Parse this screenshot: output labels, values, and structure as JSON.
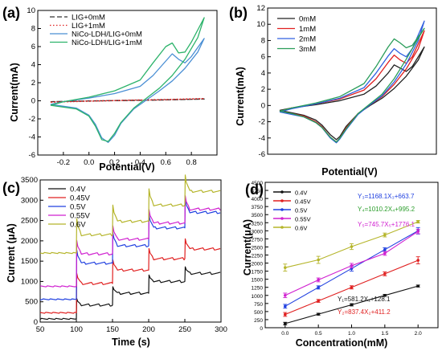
{
  "chart_data": [
    {
      "panel": "(a)",
      "type": "line",
      "xlabel": "Potential(V)",
      "ylabel": "Current(mA)",
      "xlim": [
        -0.4,
        1.0
      ],
      "ylim": [
        -6,
        10
      ],
      "xticks": [
        "-0.2",
        "0.0",
        "0.2",
        "0.4",
        "0.6",
        "0.8"
      ],
      "yticks": [
        "-6",
        "-4",
        "-2",
        "0",
        "2",
        "4",
        "6",
        "8",
        "10"
      ],
      "legend_position": "top-left",
      "series": [
        {
          "name": "LIG+0mM",
          "color": "#333333",
          "style": "dashed",
          "x": [
            -0.3,
            0.0,
            0.3,
            0.6,
            0.9,
            0.6,
            0.3,
            0.0,
            -0.3
          ],
          "y": [
            -0.1,
            -0.02,
            0.03,
            0.1,
            0.2,
            0.12,
            0.05,
            -0.02,
            -0.1
          ]
        },
        {
          "name": "LIG+1mM",
          "color": "#e02020",
          "style": "dotted",
          "x": [
            -0.3,
            0.0,
            0.3,
            0.6,
            0.9,
            0.6,
            0.3,
            0.0,
            -0.3
          ],
          "y": [
            -0.15,
            -0.05,
            0.05,
            0.12,
            0.25,
            0.15,
            0.07,
            -0.03,
            -0.15
          ]
        },
        {
          "name": "NiCo-LDH/LIG+0mM",
          "color": "#4a8fd4",
          "style": "solid",
          "x": [
            -0.3,
            -0.2,
            0.0,
            0.2,
            0.4,
            0.5,
            0.6,
            0.65,
            0.7,
            0.75,
            0.8,
            0.9,
            0.85,
            0.75,
            0.65,
            0.55,
            0.45,
            0.35,
            0.25,
            0.2,
            0.15,
            0.1,
            0.05,
            0.0,
            -0.1,
            -0.2,
            -0.3
          ],
          "y": [
            -0.4,
            -0.1,
            0.3,
            0.8,
            1.6,
            2.8,
            4.4,
            5.2,
            4.6,
            4.2,
            4.9,
            6.9,
            5.4,
            3.6,
            2.2,
            1.1,
            0.1,
            -0.9,
            -2.5,
            -3.8,
            -4.6,
            -4.1,
            -2.6,
            -1.6,
            -0.8,
            -0.6,
            -0.4
          ]
        },
        {
          "name": "NiCo-LDH/LIG+1mM",
          "color": "#2db36b",
          "style": "solid",
          "x": [
            -0.3,
            -0.2,
            0.0,
            0.2,
            0.4,
            0.5,
            0.6,
            0.65,
            0.7,
            0.75,
            0.8,
            0.9,
            0.85,
            0.75,
            0.65,
            0.55,
            0.45,
            0.35,
            0.25,
            0.2,
            0.15,
            0.1,
            0.05,
            0.0,
            -0.1,
            -0.2,
            -0.3
          ],
          "y": [
            -0.5,
            -0.1,
            0.4,
            1.1,
            2.3,
            4.2,
            6.0,
            6.4,
            5.3,
            5.4,
            6.5,
            9.2,
            7.0,
            4.6,
            2.8,
            1.4,
            0.3,
            -0.8,
            -2.4,
            -3.6,
            -4.5,
            -4.3,
            -2.8,
            -1.7,
            -0.9,
            -0.7,
            -0.5
          ]
        }
      ]
    },
    {
      "panel": "(b)",
      "type": "line",
      "xlabel": "Potential(V)",
      "ylabel": "Current(mA)",
      "xlim": [
        -0.4,
        1.0
      ],
      "ylim": [
        -6,
        12
      ],
      "yticks": [
        "-6",
        "-4",
        "-2",
        "0",
        "2",
        "4",
        "6",
        "8",
        "10",
        "12"
      ],
      "legend_position": "top-left",
      "series": [
        {
          "name": "0mM",
          "color": "#222222",
          "style": "solid",
          "x": [
            -0.3,
            -0.2,
            0.0,
            0.2,
            0.4,
            0.5,
            0.6,
            0.65,
            0.7,
            0.75,
            0.8,
            0.9,
            0.85,
            0.75,
            0.65,
            0.55,
            0.45,
            0.35,
            0.25,
            0.2,
            0.17,
            0.12,
            0.05,
            0.0,
            -0.1,
            -0.2,
            -0.3
          ],
          "y": [
            -0.6,
            -0.3,
            0.1,
            0.6,
            1.4,
            2.4,
            4.0,
            5.0,
            4.6,
            4.2,
            4.8,
            7.2,
            5.6,
            3.6,
            2.1,
            0.9,
            0.0,
            -1.0,
            -2.6,
            -3.8,
            -4.2,
            -3.6,
            -2.4,
            -1.8,
            -1.2,
            -0.9,
            -0.6
          ]
        },
        {
          "name": "1mM",
          "color": "#e02020",
          "style": "solid",
          "x": [
            -0.3,
            -0.2,
            0.0,
            0.2,
            0.4,
            0.5,
            0.6,
            0.65,
            0.7,
            0.75,
            0.8,
            0.9,
            0.85,
            0.75,
            0.65,
            0.55,
            0.45,
            0.35,
            0.25,
            0.2,
            0.17,
            0.12,
            0.05,
            0.0,
            -0.1,
            -0.2,
            -0.3
          ],
          "y": [
            -0.7,
            -0.3,
            0.2,
            0.8,
            1.9,
            3.3,
            5.3,
            6.2,
            5.6,
            5.2,
            6.0,
            9.2,
            7.0,
            4.5,
            2.6,
            1.1,
            0.1,
            -1.0,
            -2.8,
            -4.0,
            -4.5,
            -3.9,
            -2.6,
            -2.0,
            -1.3,
            -1.0,
            -0.7
          ]
        },
        {
          "name": "2mM",
          "color": "#3060e0",
          "style": "solid",
          "x": [
            -0.3,
            -0.2,
            0.0,
            0.2,
            0.4,
            0.5,
            0.6,
            0.65,
            0.7,
            0.75,
            0.8,
            0.9,
            0.85,
            0.75,
            0.65,
            0.55,
            0.45,
            0.35,
            0.25,
            0.2,
            0.17,
            0.12,
            0.05,
            0.0,
            -0.1,
            -0.2,
            -0.3
          ],
          "y": [
            -0.8,
            -0.4,
            0.2,
            0.9,
            2.2,
            4.0,
            6.1,
            7.0,
            6.4,
            6.0,
            7.0,
            10.4,
            8.0,
            5.1,
            2.9,
            1.2,
            0.1,
            -1.1,
            -3.0,
            -4.1,
            -4.6,
            -4.0,
            -2.7,
            -2.1,
            -1.4,
            -1.1,
            -0.8
          ]
        },
        {
          "name": "3mM",
          "color": "#2a9d5a",
          "style": "solid",
          "x": [
            -0.3,
            -0.2,
            0.0,
            0.2,
            0.4,
            0.5,
            0.6,
            0.65,
            0.7,
            0.75,
            0.8,
            0.9,
            0.85,
            0.75,
            0.65,
            0.55,
            0.45,
            0.35,
            0.25,
            0.2,
            0.17,
            0.12,
            0.05,
            0.0,
            -0.1,
            -0.2,
            -0.3
          ],
          "y": [
            -0.7,
            -0.3,
            0.3,
            1.1,
            2.7,
            4.8,
            7.2,
            8.2,
            7.7,
            7.1,
            7.4,
            9.5,
            8.3,
            5.7,
            3.3,
            1.4,
            0.2,
            -1.0,
            -2.9,
            -4.0,
            -4.5,
            -3.9,
            -2.7,
            -2.1,
            -1.4,
            -1.0,
            -0.7
          ]
        }
      ]
    },
    {
      "panel": "(c)",
      "type": "line",
      "xlabel": "Time (s)",
      "ylabel": "Current (μA)",
      "xlim": [
        50,
        300
      ],
      "ylim": [
        0,
        3500
      ],
      "xticks": [
        "50",
        "100",
        "150",
        "200",
        "250",
        "300"
      ],
      "yticks": [
        "0",
        "500",
        "1000",
        "1500",
        "2000",
        "2500",
        "3000",
        "3500"
      ],
      "legend_position": "top-left",
      "steps_at": [
        100,
        150,
        200,
        250
      ],
      "series": [
        {
          "name": "0.4V",
          "color": "#111111",
          "start": 80,
          "levels": [
            420,
            710,
            1000,
            1200
          ],
          "spike": 160
        },
        {
          "name": "0.45V",
          "color": "#e02020",
          "start": 230,
          "levels": [
            950,
            1280,
            1560,
            1800
          ],
          "spike": 250
        },
        {
          "name": "0.5V",
          "color": "#2040e0",
          "start": 560,
          "levels": [
            1450,
            1880,
            2320,
            2700
          ],
          "spike": 330
        },
        {
          "name": "0.55V",
          "color": "#d020d0",
          "start": 880,
          "levels": [
            1680,
            2040,
            2440,
            2780
          ],
          "spike": 330
        },
        {
          "name": "0.6V",
          "color": "#b5b52a",
          "start": 1700,
          "levels": [
            2150,
            2480,
            2880,
            3220
          ],
          "spike": 400
        }
      ]
    },
    {
      "panel": "(d)",
      "type": "scatter",
      "xlabel": "Concentration(mM)",
      "ylabel": "Current(μA)",
      "xlim": [
        -0.3,
        2.3
      ],
      "ylim": [
        0,
        4500
      ],
      "xticks": [
        "0.0",
        "0.5",
        "1.0",
        "1.5",
        "2.0"
      ],
      "yticks": [
        "0",
        "250",
        "500",
        "750",
        "1000",
        "1250",
        "1500",
        "1750",
        "2000",
        "2250",
        "2500",
        "2750",
        "3000",
        "3250",
        "3500",
        "3750",
        "4000",
        "4250",
        "4500"
      ],
      "legend_position": "top-left",
      "x": [
        0.0,
        0.5,
        1.0,
        1.5,
        2.0
      ],
      "series": [
        {
          "name": "0.4V",
          "color": "#111111",
          "values": [
            128,
            419,
            709,
            1000,
            1290
          ],
          "err": [
            40,
            30,
            35,
            30,
            30
          ]
        },
        {
          "name": "0.45V",
          "color": "#e02020",
          "values": [
            411,
            830,
            1249,
            1667,
            2086
          ],
          "err": [
            60,
            45,
            50,
            60,
            110
          ]
        },
        {
          "name": "0.5V",
          "color": "#2040e0",
          "values": [
            663,
            1247,
            1832,
            2416,
            3000
          ],
          "err": [
            60,
            50,
            80,
            60,
            100
          ]
        },
        {
          "name": "0.55V",
          "color": "#d020d0",
          "values": [
            1000,
            1480,
            1920,
            2300,
            2980
          ],
          "err": [
            70,
            60,
            70,
            60,
            70
          ]
        },
        {
          "name": "0.6V",
          "color": "#b5b52a",
          "values": [
            1860,
            2100,
            2510,
            2870,
            3280
          ],
          "err": [
            110,
            110,
            90,
            60,
            40
          ]
        }
      ],
      "equations": [
        {
          "text": "Y₃=1168.1X₃+663.7",
          "color": "#2040e0"
        },
        {
          "text": "Y₄=1010.2X₄+995.2",
          "color": "#2a9d2a"
        },
        {
          "text": "Y₅=745.7X₅+1776.1",
          "color": "#d020d0"
        },
        {
          "text": "Y₁=581.2X₁+128.1",
          "color": "#111111"
        },
        {
          "text": "Y₂=837.4X₂+411.2",
          "color": "#e02020"
        }
      ]
    }
  ]
}
